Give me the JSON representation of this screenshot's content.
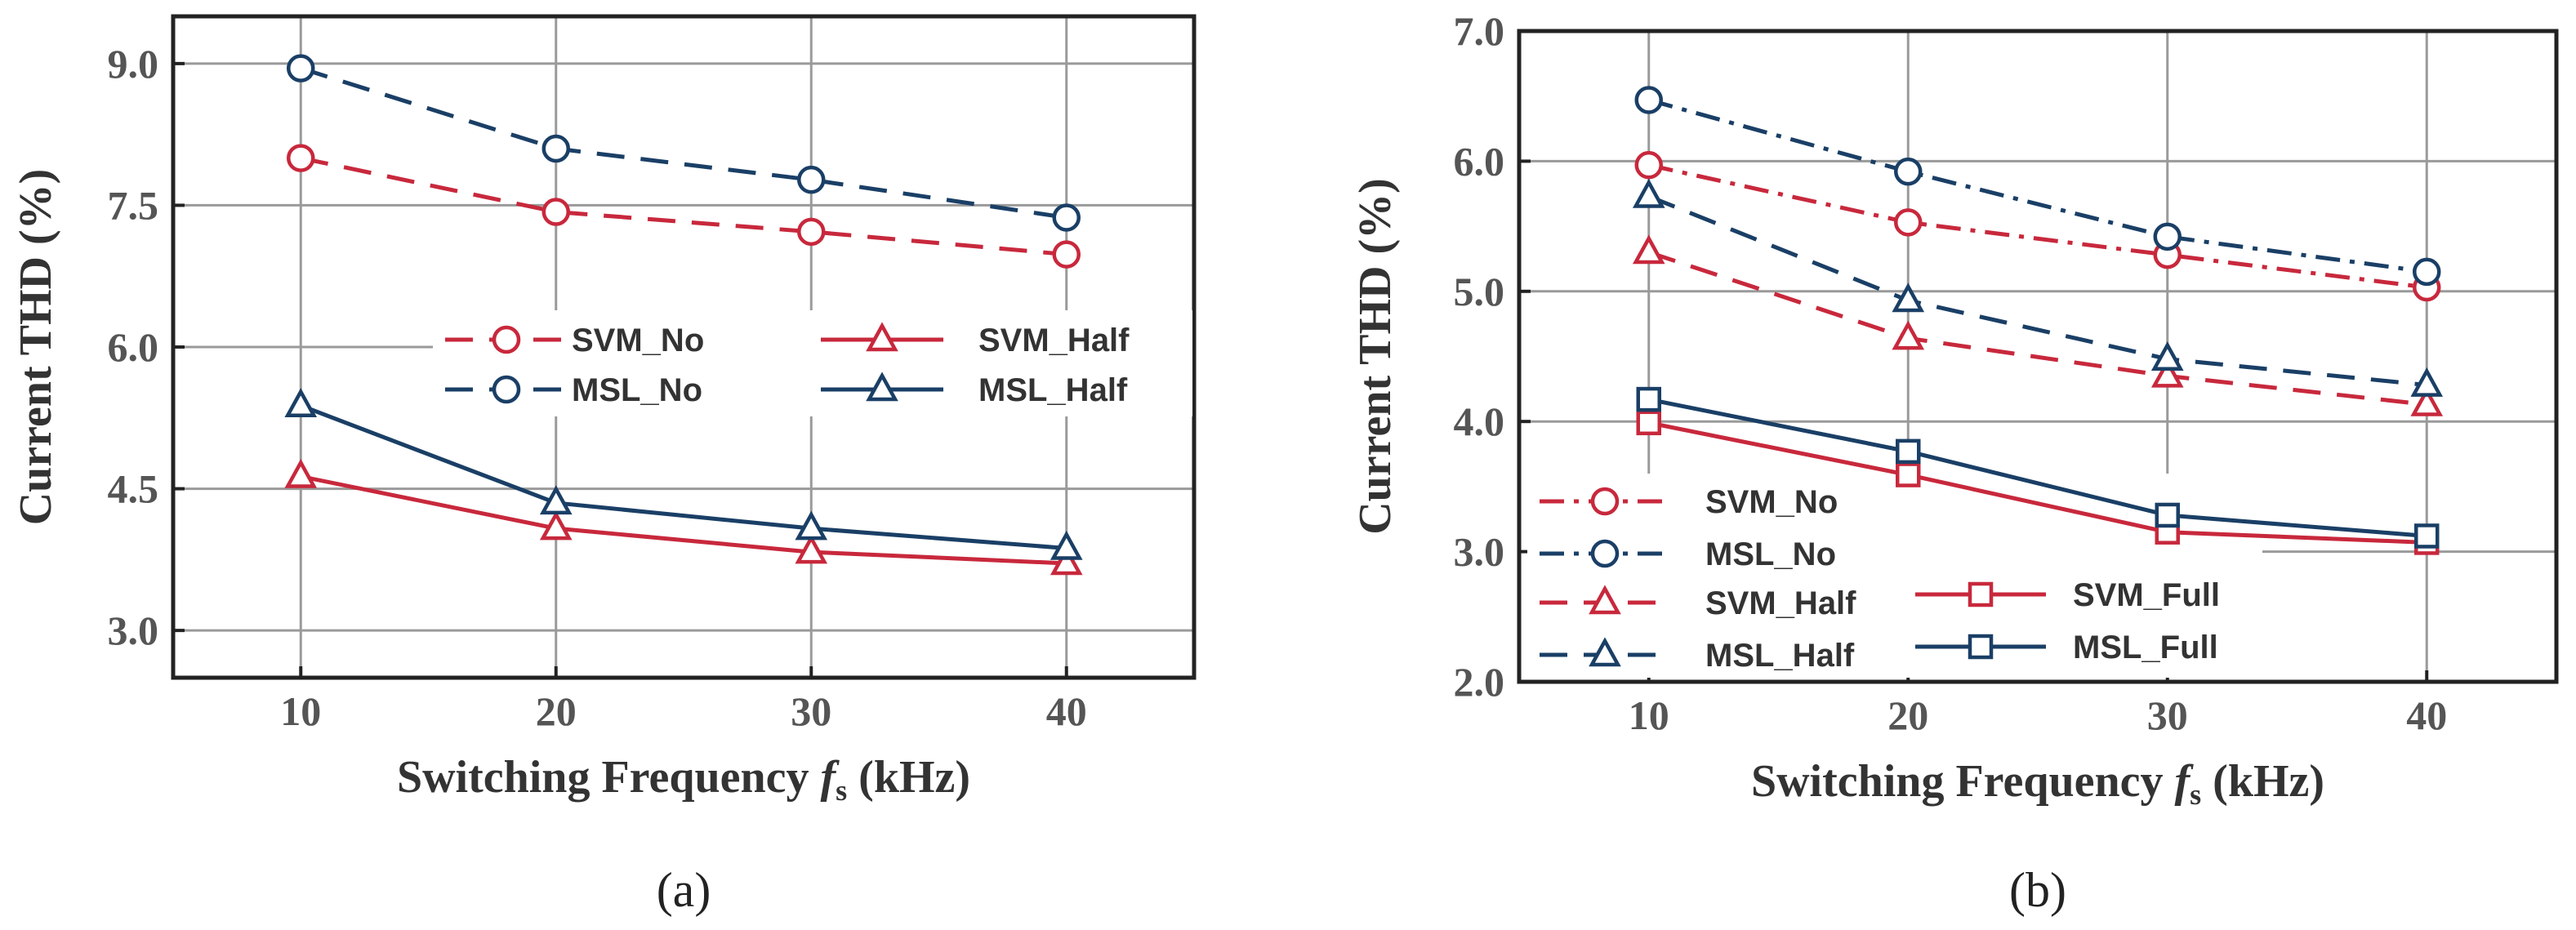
{
  "colors": {
    "red": "#c8283c",
    "blue": "#1a3f66",
    "grid": "#9a9a9a",
    "frame": "#222222"
  },
  "chart_data": [
    {
      "type": "line",
      "panel_label": "(a)",
      "xlabel": "Switching Frequency ",
      "xlabel_symbol": "f",
      "xlabel_sub": "s",
      "xlabel_unit": " (kHz)",
      "ylabel": "Current THD (%)",
      "x": [
        10,
        20,
        30,
        40
      ],
      "xlim": [
        5,
        45
      ],
      "ylim": [
        2.5,
        9.5
      ],
      "xticks": [
        "10",
        "20",
        "30",
        "40"
      ],
      "yticks": [
        "3.0",
        "4.5",
        "6.0",
        "7.5",
        "9.0"
      ],
      "grid": true,
      "legend_position": "middle-right",
      "series": [
        {
          "name": "SVM_No",
          "color": "red",
          "dash": "dash",
          "marker": "circle",
          "values": [
            8.0,
            7.43,
            7.22,
            6.98
          ]
        },
        {
          "name": "MSL_No",
          "color": "blue",
          "dash": "dash",
          "marker": "circle",
          "values": [
            8.95,
            8.1,
            7.77,
            7.37
          ]
        },
        {
          "name": "SVM_Half",
          "color": "red",
          "dash": "solid",
          "marker": "triangle",
          "values": [
            4.63,
            4.08,
            3.83,
            3.71
          ]
        },
        {
          "name": "MSL_Half",
          "color": "blue",
          "dash": "solid",
          "marker": "triangle",
          "values": [
            5.38,
            4.35,
            4.08,
            3.87
          ]
        }
      ]
    },
    {
      "type": "line",
      "panel_label": "(b)",
      "xlabel": "Switching Frequency ",
      "xlabel_symbol": "f",
      "xlabel_sub": "s",
      "xlabel_unit": " (kHz)",
      "ylabel": "Current THD (%)",
      "x": [
        10,
        20,
        30,
        40
      ],
      "xlim": [
        5,
        45
      ],
      "ylim": [
        2.0,
        7.0
      ],
      "xticks": [
        "10",
        "20",
        "30",
        "40"
      ],
      "yticks": [
        "2.0",
        "3.0",
        "4.0",
        "5.0",
        "6.0",
        "7.0"
      ],
      "grid": true,
      "legend_position": "bottom-left",
      "series": [
        {
          "name": "SVM_No",
          "color": "red",
          "dash": "dashdot",
          "marker": "circle",
          "values": [
            5.97,
            5.53,
            5.28,
            5.03
          ]
        },
        {
          "name": "MSL_No",
          "color": "blue",
          "dash": "dashdot",
          "marker": "circle",
          "values": [
            6.47,
            5.92,
            5.42,
            5.15
          ]
        },
        {
          "name": "SVM_Half",
          "color": "red",
          "dash": "dash",
          "marker": "triangle",
          "values": [
            5.3,
            4.64,
            4.35,
            4.13
          ]
        },
        {
          "name": "MSL_Half",
          "color": "blue",
          "dash": "dash",
          "marker": "triangle",
          "values": [
            5.73,
            4.93,
            4.48,
            4.28
          ]
        },
        {
          "name": "SVM_Full",
          "color": "red",
          "dash": "solid",
          "marker": "square",
          "values": [
            3.99,
            3.59,
            3.15,
            3.07
          ]
        },
        {
          "name": "MSL_Full",
          "color": "blue",
          "dash": "solid",
          "marker": "square",
          "values": [
            4.17,
            3.77,
            3.28,
            3.12
          ]
        }
      ]
    }
  ]
}
